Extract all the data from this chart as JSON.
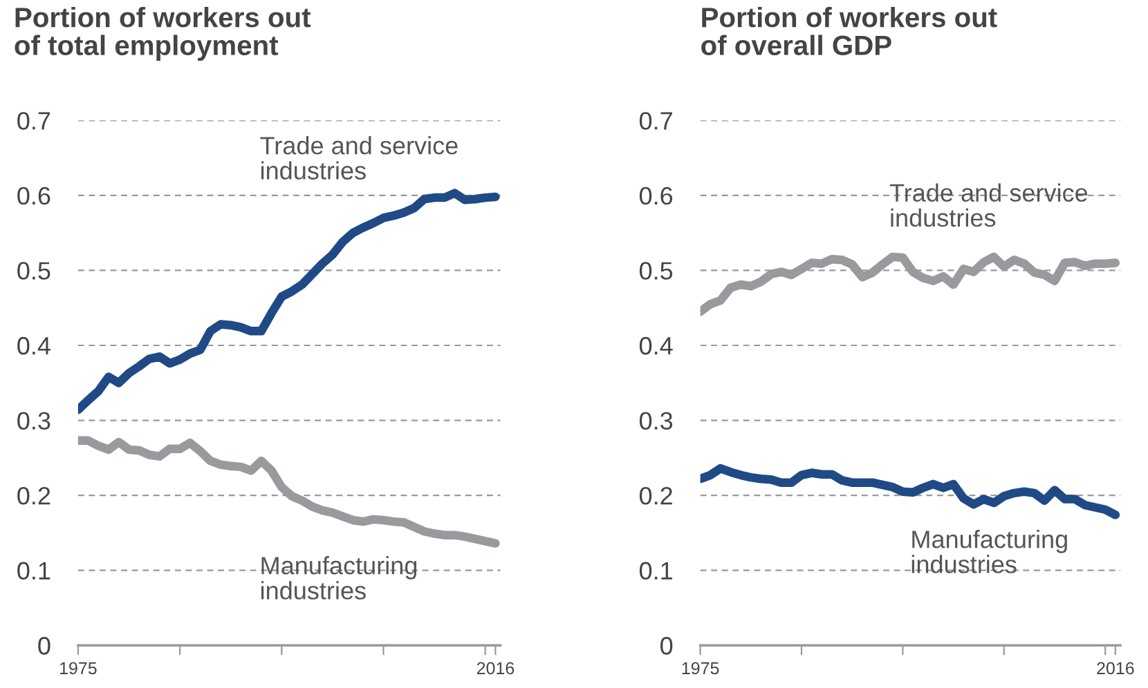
{
  "chart_data": [
    {
      "type": "line",
      "title": "Portion of workers out\nof total employment",
      "x": [
        1975,
        1976,
        1977,
        1978,
        1979,
        1980,
        1981,
        1982,
        1983,
        1984,
        1985,
        1986,
        1987,
        1988,
        1989,
        1990,
        1991,
        1992,
        1993,
        1994,
        1995,
        1996,
        1997,
        1998,
        1999,
        2000,
        2001,
        2002,
        2003,
        2004,
        2005,
        2006,
        2007,
        2008,
        2009,
        2010,
        2011,
        2012,
        2013,
        2014,
        2015,
        2016
      ],
      "series": [
        {
          "name": "Trade and service\nindustries",
          "color": "#1f4a86",
          "values": [
            0.314,
            0.327,
            0.339,
            0.358,
            0.35,
            0.363,
            0.372,
            0.382,
            0.385,
            0.376,
            0.381,
            0.389,
            0.394,
            0.419,
            0.428,
            0.427,
            0.424,
            0.419,
            0.419,
            0.443,
            0.465,
            0.472,
            0.481,
            0.495,
            0.509,
            0.521,
            0.538,
            0.55,
            0.557,
            0.563,
            0.57,
            0.573,
            0.577,
            0.583,
            0.595,
            0.597,
            0.597,
            0.603,
            0.594,
            0.595,
            0.597,
            0.598
          ]
        },
        {
          "name": "Manufacturing\nindustries",
          "color": "#999a9e",
          "values": [
            0.273,
            0.273,
            0.266,
            0.261,
            0.271,
            0.261,
            0.26,
            0.254,
            0.252,
            0.262,
            0.262,
            0.27,
            0.259,
            0.246,
            0.241,
            0.239,
            0.238,
            0.233,
            0.246,
            0.233,
            0.211,
            0.199,
            0.193,
            0.185,
            0.18,
            0.177,
            0.172,
            0.167,
            0.165,
            0.168,
            0.167,
            0.165,
            0.164,
            0.158,
            0.152,
            0.149,
            0.147,
            0.147,
            0.145,
            0.142,
            0.139,
            0.136
          ]
        }
      ],
      "xlim": [
        1975,
        2016.5
      ],
      "xticks": [
        1975,
        {
          "value": 1985,
          "label": null
        },
        {
          "value": 1995,
          "label": null
        },
        {
          "value": 2005,
          "label": null
        },
        {
          "value": 2015,
          "label": null
        },
        2016
      ],
      "ylim": [
        0,
        0.7
      ],
      "yticks": [
        0,
        0.1,
        0.2,
        0.3,
        0.4,
        0.5,
        0.6,
        0.7
      ],
      "grid": "y",
      "line_style": "solid",
      "marker": "none"
    },
    {
      "type": "line",
      "title": "Portion of workers out\nof overall GDP",
      "x": [
        1975,
        1976,
        1977,
        1978,
        1979,
        1980,
        1981,
        1982,
        1983,
        1984,
        1985,
        1986,
        1987,
        1988,
        1989,
        1990,
        1991,
        1992,
        1993,
        1994,
        1995,
        1996,
        1997,
        1998,
        1999,
        2000,
        2001,
        2002,
        2003,
        2004,
        2005,
        2006,
        2007,
        2008,
        2009,
        2010,
        2011,
        2012,
        2013,
        2014,
        2015,
        2016
      ],
      "series": [
        {
          "name": "Trade and service\nindustries",
          "color": "#999a9e",
          "values": [
            0.445,
            0.455,
            0.46,
            0.477,
            0.481,
            0.479,
            0.485,
            0.495,
            0.498,
            0.494,
            0.502,
            0.51,
            0.509,
            0.515,
            0.514,
            0.508,
            0.491,
            0.497,
            0.508,
            0.518,
            0.517,
            0.498,
            0.49,
            0.486,
            0.492,
            0.481,
            0.502,
            0.498,
            0.511,
            0.518,
            0.505,
            0.514,
            0.509,
            0.497,
            0.494,
            0.486,
            0.51,
            0.511,
            0.506,
            0.509,
            0.509,
            0.51
          ]
        },
        {
          "name": "Manufacturing\nindustries",
          "color": "#1f4a86",
          "values": [
            0.222,
            0.227,
            0.236,
            0.231,
            0.227,
            0.224,
            0.222,
            0.221,
            0.217,
            0.217,
            0.227,
            0.23,
            0.228,
            0.228,
            0.22,
            0.217,
            0.217,
            0.217,
            0.214,
            0.211,
            0.205,
            0.204,
            0.21,
            0.215,
            0.21,
            0.215,
            0.196,
            0.188,
            0.195,
            0.19,
            0.199,
            0.203,
            0.205,
            0.203,
            0.193,
            0.207,
            0.195,
            0.195,
            0.187,
            0.184,
            0.181,
            0.174
          ]
        }
      ],
      "xlim": [
        1975,
        2016.5
      ],
      "xticks": [
        1975,
        {
          "value": 1985,
          "label": null
        },
        {
          "value": 1995,
          "label": null
        },
        {
          "value": 2005,
          "label": null
        },
        {
          "value": 2015,
          "label": null
        },
        2016
      ],
      "ylim": [
        0,
        0.7
      ],
      "yticks": [
        0,
        0.1,
        0.2,
        0.3,
        0.4,
        0.5,
        0.6,
        0.7
      ],
      "grid": "y",
      "line_style": "solid",
      "marker": "none"
    }
  ]
}
